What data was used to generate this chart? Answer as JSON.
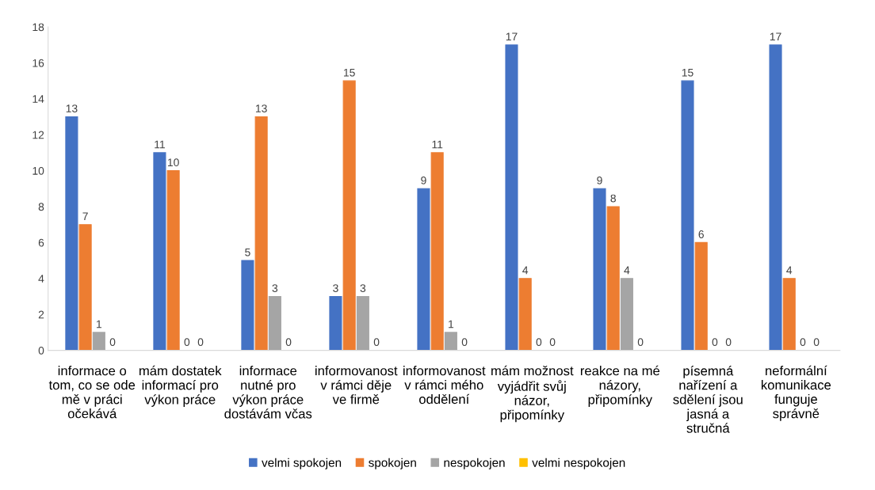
{
  "chart_data": {
    "type": "bar",
    "categories": [
      "informace o\ntom, co se ode\nmě v práci\nočekává",
      "mám dostatek\ninformací pro\nvýkon práce",
      "informace\nnutné pro\nvýkon práce\ndostávám včas",
      "informovanost\nv rámci děje\nve firmě",
      "informovanost\nv rámci mého\noddělení",
      "mám možnost\nvyjádřit svůj\nnázor,\npřipomínky",
      "reakce na mé\nnázory,\npřipomínky",
      "písemná\nnařízení a\nsdělení jsou\njasná a\nstručná",
      "neformální\nkomunikace\nfunguje\nsprávně"
    ],
    "series": [
      {
        "name": "velmi spokojen",
        "color": "#4472c4",
        "values": [
          13,
          11,
          5,
          3,
          9,
          17,
          9,
          15,
          17
        ]
      },
      {
        "name": "spokojen",
        "color": "#ed7d31",
        "values": [
          7,
          10,
          13,
          15,
          11,
          4,
          8,
          6,
          4
        ]
      },
      {
        "name": "nespokojen",
        "color": "#a5a5a5",
        "values": [
          1,
          0,
          3,
          3,
          1,
          0,
          4,
          0,
          0
        ]
      },
      {
        "name": "velmi nespokojen",
        "color": "#ffc000",
        "values": [
          0,
          0,
          0,
          0,
          0,
          0,
          0,
          0,
          0
        ]
      }
    ],
    "ylim": [
      0,
      18
    ],
    "yticks": [
      0,
      2,
      4,
      6,
      8,
      10,
      12,
      14,
      16,
      18
    ],
    "data_labels": true,
    "legend": "bottom"
  }
}
